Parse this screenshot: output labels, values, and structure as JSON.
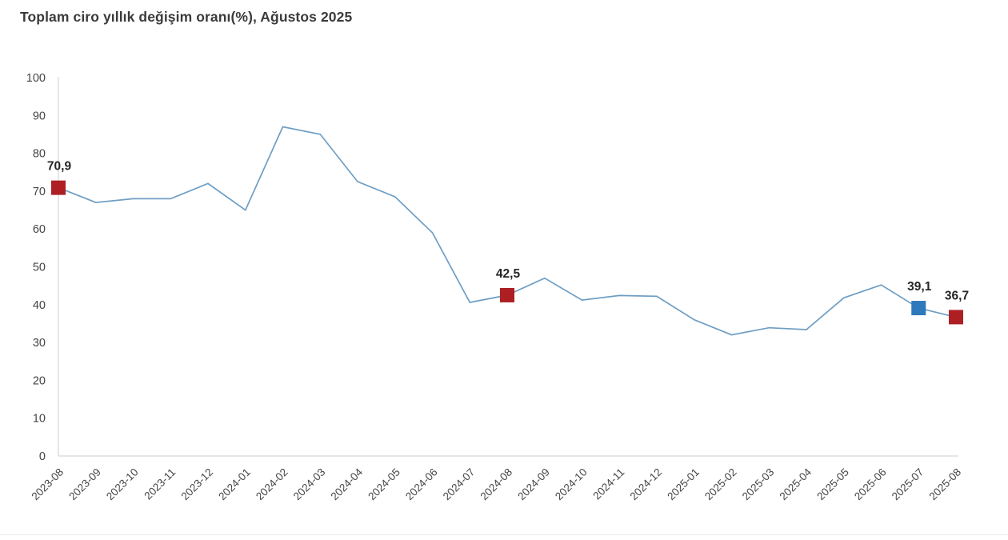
{
  "chart_data": {
    "type": "line",
    "title": "Toplam ciro yıllık değişim oranı(%), Ağustos 2025",
    "categories": [
      "2023-08",
      "2023-09",
      "2023-10",
      "2023-11",
      "2023-12",
      "2024-01",
      "2024-02",
      "2024-03",
      "2024-04",
      "2024-05",
      "2024-06",
      "2024-07",
      "2024-08",
      "2024-09",
      "2024-10",
      "2024-11",
      "2024-12",
      "2025-01",
      "2025-02",
      "2025-03",
      "2025-04",
      "2025-05",
      "2025-06",
      "2025-07",
      "2025-08"
    ],
    "values": [
      70.9,
      67.0,
      68.0,
      68.0,
      72.0,
      65.0,
      87.0,
      85.0,
      72.5,
      68.5,
      59.0,
      40.6,
      42.5,
      47.0,
      41.2,
      42.4,
      42.2,
      36.0,
      32.0,
      33.9,
      33.4,
      41.8,
      45.2,
      39.1,
      36.7
    ],
    "ylim": [
      0,
      100
    ],
    "yticks": [
      0,
      10,
      20,
      30,
      40,
      50,
      60,
      70,
      80,
      90,
      100
    ],
    "grid": false,
    "legend_position": "none",
    "xlabel": "",
    "ylabel": "",
    "annotated_points": [
      {
        "category": "2023-08",
        "index": 0,
        "value": 70.9,
        "label": "70,9",
        "marker_color": "#ae1f24"
      },
      {
        "category": "2024-08",
        "index": 12,
        "value": 42.5,
        "label": "42,5",
        "marker_color": "#ae1f24"
      },
      {
        "category": "2025-07",
        "index": 23,
        "value": 39.1,
        "label": "39,1",
        "marker_color": "#2e78bc"
      },
      {
        "category": "2025-08",
        "index": 24,
        "value": 36.7,
        "label": "36,7",
        "marker_color": "#ae1f24"
      }
    ],
    "colors": {
      "line": "#6e9ec4",
      "marker_red": "#ae1f24",
      "marker_blue": "#2e78bc",
      "axis": "#d8d8d8",
      "tick_text": "#454545",
      "title_text": "#3b3b3b",
      "label_text": "#262626"
    }
  }
}
